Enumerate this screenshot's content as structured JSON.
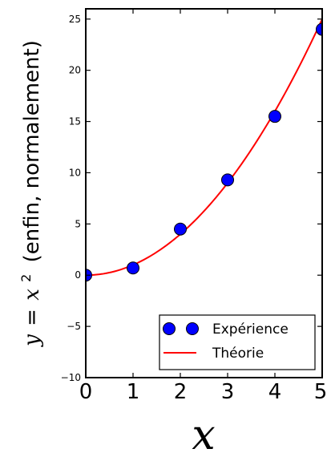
{
  "chart_data": {
    "type": "scatter",
    "x_range": [
      0,
      5
    ],
    "y_range": [
      -10,
      26
    ],
    "x_ticks": [
      "0",
      "1",
      "2",
      "3",
      "4",
      "5"
    ],
    "y_ticks": [
      "−10",
      "−5",
      "0",
      "5",
      "10",
      "15",
      "20",
      "25"
    ],
    "x_tick_values": [
      0,
      1,
      2,
      3,
      4,
      5
    ],
    "y_tick_values": [
      -10,
      -5,
      0,
      5,
      10,
      15,
      20,
      25
    ],
    "xlabel": "x",
    "ylabel": {
      "math_y": "y",
      "math_eq": "=",
      "math_x": "x",
      "math_exp": "2",
      "text": "(enfin, normalement)"
    },
    "grid": false,
    "legend_position": "lower-right",
    "series": [
      {
        "name": "Expérience",
        "kind": "scatter",
        "color": "#0000ff",
        "edge_color": "#000000",
        "x": [
          0,
          1,
          2,
          3,
          4,
          5
        ],
        "y": [
          0,
          0.7,
          4.5,
          9.3,
          15.5,
          24
        ]
      },
      {
        "name": "Théorie",
        "kind": "line",
        "color": "#ff0000",
        "function": "x^2",
        "x": [
          0,
          5
        ]
      }
    ]
  }
}
